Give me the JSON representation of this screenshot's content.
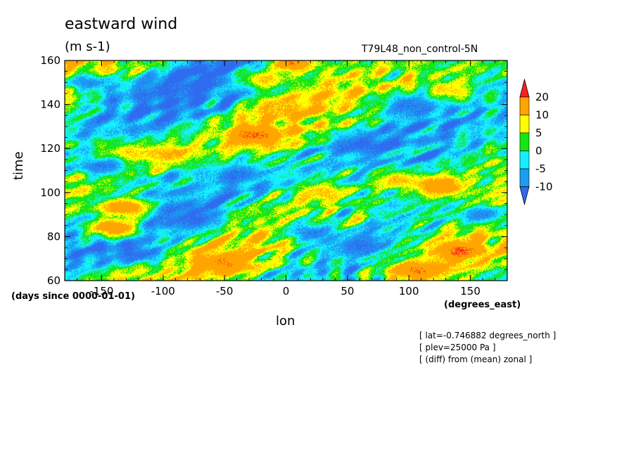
{
  "chart_data": {
    "type": "heatmap",
    "title": "eastward wind",
    "units": "(m s-1)",
    "subtitle": "T79L48_non_control-5N",
    "xlabel": "lon",
    "ylabel": "time",
    "x_units": "(degrees_east)",
    "y_units": "(days since 0000-01-01)",
    "xlim": [
      -180,
      180
    ],
    "ylim": [
      60,
      160
    ],
    "x_ticks": [
      -150,
      -100,
      -50,
      0,
      50,
      100,
      150
    ],
    "y_ticks": [
      60,
      80,
      100,
      120,
      140,
      160
    ],
    "colorbar": {
      "labels": [
        "20",
        "10",
        "5",
        "0",
        "-5",
        "-10"
      ],
      "levels": [
        -10,
        -5,
        0,
        5,
        10,
        20
      ],
      "colors": [
        "#2f6bef",
        "#1c9cf2",
        "#14f0ff",
        "#14e614",
        "#ffff00",
        "#ffa500",
        "#ff1e1e"
      ]
    },
    "features": [
      {
        "lon": -25,
        "time": 126,
        "value": 22
      },
      {
        "lon": 140,
        "time": 74,
        "value": 22
      },
      {
        "lon": 5,
        "time": 159,
        "value": 22
      },
      {
        "lon": -140,
        "time": 84,
        "value": 21
      },
      {
        "lon": -130,
        "time": 93,
        "value": 20
      },
      {
        "lon": 125,
        "time": 103,
        "value": 20
      },
      {
        "lon": -50,
        "time": 68,
        "value": 20
      },
      {
        "lon": 105,
        "time": 65,
        "value": 21
      },
      {
        "lon": 90,
        "time": 106,
        "value": 12
      },
      {
        "lon": 30,
        "time": 100,
        "value": 12
      },
      {
        "lon": -95,
        "time": 118,
        "value": 13
      },
      {
        "lon": 135,
        "time": 146,
        "value": 11
      },
      {
        "lon": -20,
        "time": 152,
        "value": 12
      },
      {
        "lon": -5,
        "time": 138,
        "value": 12
      },
      {
        "lon": -130,
        "time": 118,
        "value": 12
      },
      {
        "lon": -150,
        "time": 112,
        "value": -12
      },
      {
        "lon": -120,
        "time": 72,
        "value": -13
      },
      {
        "lon": -75,
        "time": 88,
        "value": -13
      },
      {
        "lon": 60,
        "time": 122,
        "value": -13
      },
      {
        "lon": 100,
        "time": 140,
        "value": -12
      },
      {
        "lon": -40,
        "time": 108,
        "value": -12
      },
      {
        "lon": 20,
        "time": 82,
        "value": -12
      },
      {
        "lon": -160,
        "time": 150,
        "value": -11
      },
      {
        "lon": 160,
        "time": 90,
        "value": -11
      },
      {
        "lon": -90,
        "time": 148,
        "value": -11
      },
      {
        "lon": 60,
        "time": 76,
        "value": -12
      }
    ]
  },
  "annotations": [
    "[ lat=-0.746882 degrees_north ]",
    "[ plev=25000 Pa ]",
    "[ (diff) from (mean) zonal ]"
  ]
}
